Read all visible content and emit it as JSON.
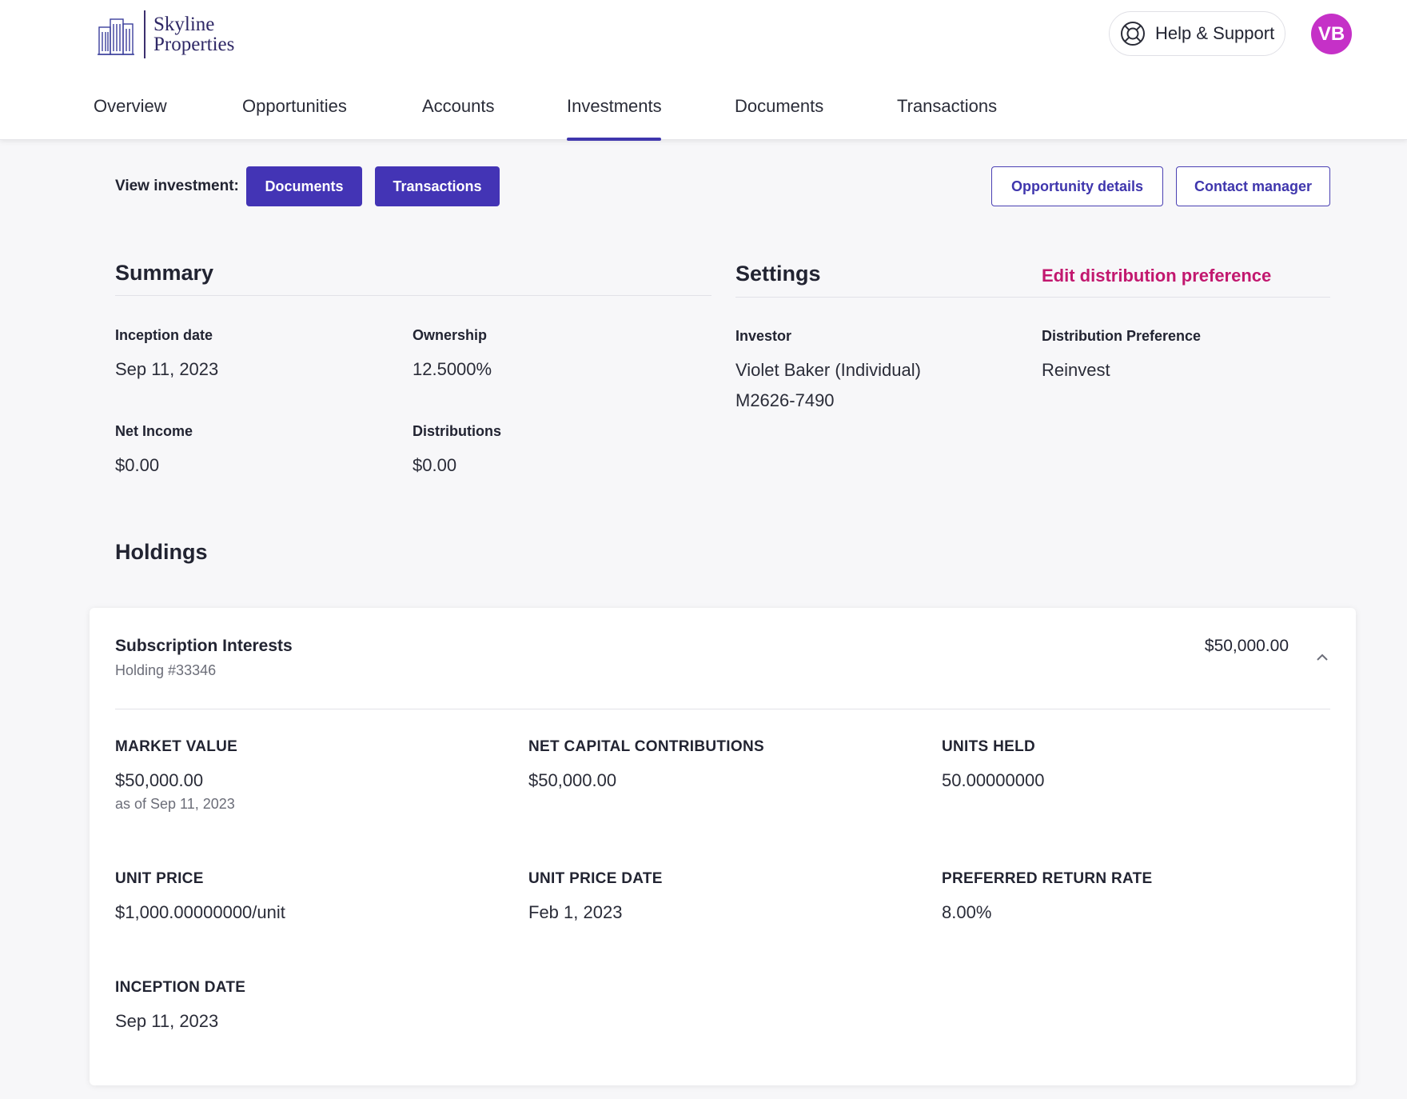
{
  "brand": {
    "line1": "Skyline",
    "line2": "Properties"
  },
  "header": {
    "help_label": "Help & Support",
    "avatar_initials": "VB"
  },
  "nav": {
    "tabs": [
      {
        "label": "Overview"
      },
      {
        "label": "Opportunities"
      },
      {
        "label": "Accounts"
      },
      {
        "label": "Investments"
      },
      {
        "label": "Documents"
      },
      {
        "label": "Transactions"
      }
    ],
    "active": "Investments"
  },
  "view_investment": {
    "label": "View investment:",
    "documents": "Documents",
    "transactions": "Transactions",
    "opportunity_details": "Opportunity details",
    "contact_manager": "Contact manager"
  },
  "summary": {
    "title": "Summary",
    "inception_label": "Inception date",
    "inception_value": "Sep 11, 2023",
    "ownership_label": "Ownership",
    "ownership_value": "12.5000%",
    "net_income_label": "Net Income",
    "net_income_value": "$0.00",
    "distributions_label": "Distributions",
    "distributions_value": "$0.00"
  },
  "settings": {
    "title": "Settings",
    "edit_link": "Edit distribution preference",
    "investor_label": "Investor",
    "investor_name": "Violet Baker (Individual)",
    "investor_id": "M2626-7490",
    "pref_label": "Distribution Preference",
    "pref_value": "Reinvest"
  },
  "holdings": {
    "title": "Holdings",
    "card": {
      "name": "Subscription Interests",
      "number": "Holding #33346",
      "amount": "$50,000.00",
      "market_value_label": "MARKET VALUE",
      "market_value": "$50,000.00",
      "market_value_note": "as of Sep 11, 2023",
      "net_capital_label": "NET CAPITAL CONTRIBUTIONS",
      "net_capital": "$50,000.00",
      "units_held_label": "UNITS HELD",
      "units_held": "50.00000000",
      "unit_price_label": "UNIT PRICE",
      "unit_price": "$1,000.00000000/unit",
      "unit_price_date_label": "UNIT PRICE DATE",
      "unit_price_date": "Feb 1, 2023",
      "preferred_return_label": "PREFERRED RETURN RATE",
      "preferred_return": "8.00%",
      "inception_label": "INCEPTION DATE",
      "inception": "Sep 11, 2023"
    }
  },
  "colors": {
    "primary": "#4334b5",
    "accent_pink": "#c2186f",
    "avatar": "#c531c7"
  }
}
